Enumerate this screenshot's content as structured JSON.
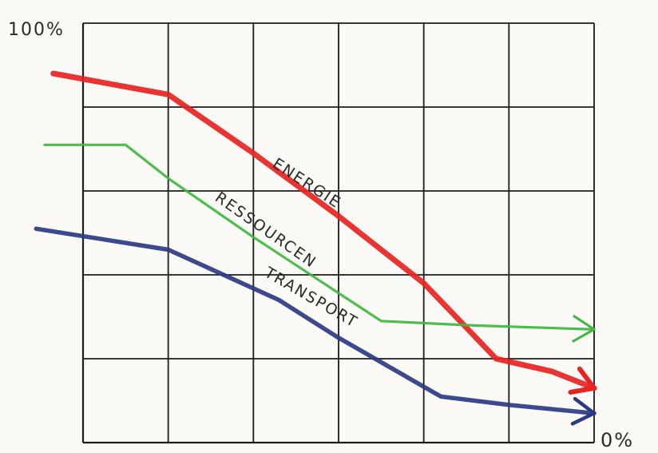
{
  "chart_data": {
    "type": "line",
    "title": "",
    "xlabel": "",
    "ylabel": "",
    "y_tick_labels": {
      "top": "100%",
      "bottom": "0%"
    },
    "ylim": [
      0,
      100
    ],
    "xlim": [
      0,
      6
    ],
    "grid": true,
    "legend": "none (series labels written along lines)",
    "series": [
      {
        "name": "ENERGIE",
        "color": "#e8231f",
        "points": [
          [
            -0.35,
            88
          ],
          [
            1,
            83
          ],
          [
            2,
            69
          ],
          [
            3,
            54
          ],
          [
            4,
            38
          ],
          [
            4.85,
            20
          ],
          [
            5.5,
            17
          ],
          [
            6,
            13
          ]
        ],
        "arrow": true
      },
      {
        "name": "RESSOURCEN",
        "color": "#3cb83c",
        "points": [
          [
            -0.45,
            71
          ],
          [
            0.5,
            71
          ],
          [
            1,
            63
          ],
          [
            2,
            49
          ],
          [
            3.5,
            29
          ],
          [
            4.5,
            28
          ],
          [
            6,
            27
          ]
        ],
        "arrow": true
      },
      {
        "name": "TRANSPORT",
        "color": "#2c3a85",
        "points": [
          [
            -0.55,
            51
          ],
          [
            1,
            46
          ],
          [
            2.3,
            34
          ],
          [
            3,
            25
          ],
          [
            4.2,
            11
          ],
          [
            5,
            9
          ],
          [
            6,
            7
          ]
        ],
        "arrow": true
      }
    ]
  }
}
